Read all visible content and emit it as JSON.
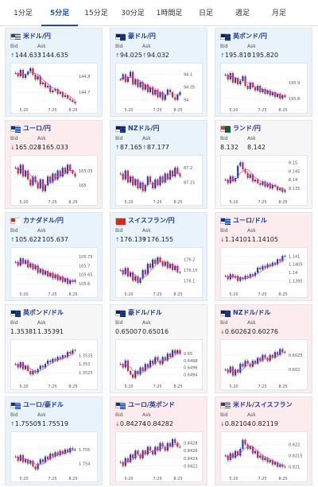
{
  "tabs": [
    {
      "label": "1分足",
      "active": false
    },
    {
      "label": "5分足",
      "active": true
    },
    {
      "label": "15分足",
      "active": false
    },
    {
      "label": "30分足",
      "active": false
    },
    {
      "label": "1時間足",
      "active": false
    },
    {
      "label": "日足",
      "active": false
    },
    {
      "label": "週足",
      "active": false
    },
    {
      "label": "月足",
      "active": false
    }
  ],
  "colors": {
    "up": "#1c7fd6",
    "down": "#d2283a",
    "up_bg": "#e9f3fc",
    "down_bg": "#fcecee",
    "accent": "#1f4fa8",
    "ma": "#c946d6"
  },
  "x_ticks": [
    "5:20",
    "7:25",
    "8:25"
  ],
  "pairs": [
    {
      "name": "米ドル/円",
      "trend": "up",
      "flag": [
        "#ffffff",
        "#3c3b6e",
        "#b22234"
      ],
      "bid_label": "Bid",
      "ask_label": "Ask",
      "bid_arrow": "↑",
      "bid": "144.633",
      "ask_arrow": "↑",
      "ask": "144.635",
      "y_ticks": [
        "144.8",
        "144.7"
      ],
      "y_range": [
        144.62,
        144.86
      ],
      "closes": [
        144.82,
        144.8,
        144.84,
        144.79,
        144.81,
        144.83,
        144.85,
        144.81,
        144.78,
        144.8,
        144.75,
        144.76,
        144.73,
        144.74,
        144.7,
        144.71,
        144.72,
        144.69,
        144.7,
        144.67,
        144.68,
        144.66,
        144.65,
        144.64,
        144.63
      ]
    },
    {
      "name": "豪ドル/円",
      "trend": "up",
      "flag": [
        "#012169",
        "#012169",
        "#c8102e"
      ],
      "bid_label": "Bid",
      "ask_label": "Ask",
      "bid_arrow": "↑",
      "bid": "94.025",
      "ask_arrow": "↑",
      "ask": "94.032",
      "y_ticks": [
        "94.1",
        "94.05",
        "94"
      ],
      "y_range": [
        93.98,
        94.13
      ],
      "closes": [
        94.08,
        94.1,
        94.07,
        94.09,
        94.11,
        94.06,
        94.08,
        94.05,
        94.07,
        94.04,
        94.06,
        94.03,
        94.05,
        94.02,
        94.04,
        94.01,
        94.03,
        94.0,
        94.02,
        94.04,
        94.03,
        94.01,
        94.0,
        94.02,
        94.03
      ]
    },
    {
      "name": "英ポンド/円",
      "trend": "up",
      "flag": [
        "#012169",
        "#012169",
        "#c8102e"
      ],
      "bid_label": "Bid",
      "ask_label": "Ask",
      "bid_arrow": "↑",
      "bid": "195.810",
      "ask_arrow": "↑",
      "ask": "195.820",
      "y_ticks": [
        "195.9",
        "195.8"
      ],
      "y_range": [
        195.76,
        196.0
      ],
      "closes": [
        195.95,
        195.92,
        195.96,
        195.9,
        195.93,
        195.89,
        195.91,
        195.94,
        195.88,
        195.86,
        195.9,
        195.87,
        195.85,
        195.88,
        195.84,
        195.86,
        195.83,
        195.85,
        195.82,
        195.84,
        195.81,
        195.83,
        195.8,
        195.82,
        195.81
      ]
    },
    {
      "name": "ユーロ/円",
      "trend": "down",
      "flag": [
        "#003399",
        "#003399",
        "#ffcc00"
      ],
      "bid_label": "Bid",
      "ask_label": "Ask",
      "bid_arrow": "↓",
      "bid": "165.028",
      "ask_arrow": "↓",
      "ask": "165.033",
      "y_ticks": [
        "165.05",
        "165"
      ],
      "y_range": [
        164.96,
        165.09
      ],
      "closes": [
        165.06,
        165.04,
        165.07,
        165.03,
        165.05,
        165.02,
        165.0,
        165.03,
        165.01,
        164.99,
        165.02,
        164.98,
        165.0,
        165.03,
        165.01,
        165.04,
        165.02,
        165.05,
        165.03,
        165.06,
        165.04,
        165.07,
        165.05,
        165.04,
        165.03
      ]
    },
    {
      "name": "NZドル/円",
      "trend": "up",
      "flag": [
        "#012169",
        "#012169",
        "#c8102e"
      ],
      "bid_label": "Bid",
      "ask_label": "Ask",
      "bid_arrow": "↑",
      "bid": "87.165",
      "ask_arrow": "↑",
      "ask": "87.177",
      "y_ticks": [
        "87.2",
        "87.15"
      ],
      "y_range": [
        87.1,
        87.23
      ],
      "closes": [
        87.18,
        87.16,
        87.19,
        87.15,
        87.17,
        87.14,
        87.16,
        87.13,
        87.15,
        87.12,
        87.14,
        87.17,
        87.15,
        87.13,
        87.16,
        87.14,
        87.17,
        87.15,
        87.18,
        87.16,
        87.19,
        87.17,
        87.2,
        87.18,
        87.17
      ]
    },
    {
      "name": "ランド/円",
      "trend": "flat",
      "flag": [
        "#007a4d",
        "#de3831",
        "#002395"
      ],
      "bid_label": "Bid",
      "ask_label": "Ask",
      "bid_arrow": "",
      "bid": "8.132",
      "ask_arrow": "",
      "ask": "8.142",
      "y_ticks": [
        "8.15",
        "8.145",
        "8.14",
        "8.135"
      ],
      "y_range": [
        8.13,
        8.152
      ],
      "closes": [
        8.14,
        8.138,
        8.142,
        8.139,
        8.141,
        8.148,
        8.15,
        8.146,
        8.144,
        8.141,
        8.143,
        8.139,
        8.14,
        8.138,
        8.137,
        8.139,
        8.136,
        8.138,
        8.135,
        8.137,
        8.136,
        8.134,
        8.135,
        8.133,
        8.134
      ]
    },
    {
      "name": "カナダドル/円",
      "trend": "up",
      "flag": [
        "#ffffff",
        "#d52b1e",
        "#ffffff"
      ],
      "bid_label": "Bid",
      "ask_label": "Ask",
      "bid_arrow": "↑",
      "bid": "105.622",
      "ask_arrow": "↑",
      "ask": "105.637",
      "y_ticks": [
        "105.75",
        "105.7",
        "105.65",
        "105.6"
      ],
      "y_range": [
        105.57,
        105.78
      ],
      "closes": [
        105.72,
        105.7,
        105.74,
        105.71,
        105.73,
        105.69,
        105.71,
        105.68,
        105.7,
        105.66,
        105.68,
        105.65,
        105.67,
        105.64,
        105.66,
        105.63,
        105.65,
        105.62,
        105.64,
        105.61,
        105.63,
        105.6,
        105.62,
        105.61,
        105.62
      ]
    },
    {
      "name": "スイスフラン/円",
      "trend": "up",
      "flag": [
        "#d52b1e",
        "#d52b1e",
        "#d52b1e"
      ],
      "bid_label": "Bid",
      "ask_label": "Ask",
      "bid_arrow": "↑",
      "bid": "176.139",
      "ask_arrow": "↑",
      "ask": "176.155",
      "y_ticks": [
        "176.2",
        "176.15",
        "176.1"
      ],
      "y_range": [
        176.06,
        176.24
      ],
      "closes": [
        176.15,
        176.13,
        176.16,
        176.12,
        176.14,
        176.1,
        176.12,
        176.09,
        176.11,
        176.15,
        176.13,
        176.18,
        176.16,
        176.2,
        176.18,
        176.21,
        176.19,
        176.17,
        176.19,
        176.16,
        176.18,
        176.15,
        176.17,
        176.14,
        176.14
      ]
    },
    {
      "name": "ユーロ/ドル",
      "trend": "down",
      "flag": [
        "#003399",
        "#003399",
        "#ffcc00"
      ],
      "bid_label": "Bid",
      "ask_label": "Ask",
      "bid_arrow": "↓",
      "bid": "1.14101",
      "ask_arrow": "↓",
      "ask": "1.14105",
      "y_ticks": [
        "1.141",
        "1.1405",
        "1.14",
        "1.1395"
      ],
      "y_range": [
        1.139,
        1.1413
      ],
      "closes": [
        1.1398,
        1.1396,
        1.1399,
        1.1397,
        1.1398,
        1.1395,
        1.1397,
        1.1396,
        1.1398,
        1.1397,
        1.1399,
        1.1398,
        1.14,
        1.1403,
        1.1402,
        1.1404,
        1.1403,
        1.1405,
        1.1404,
        1.1406,
        1.1405,
        1.1408,
        1.1407,
        1.141,
        1.141
      ]
    },
    {
      "name": "英ポンド/ドル",
      "trend": "flat",
      "flag": [
        "#012169",
        "#012169",
        "#c8102e"
      ],
      "bid_label": "Bid",
      "ask_label": "Ask",
      "bid_arrow": "",
      "bid": "1.35381",
      "ask_arrow": "",
      "ask": "1.35391",
      "y_ticks": [
        "1.3535",
        "1.353",
        "1.3525"
      ],
      "y_range": [
        1.352,
        1.3542
      ],
      "closes": [
        1.353,
        1.3528,
        1.3531,
        1.3527,
        1.3529,
        1.3526,
        1.3524,
        1.3526,
        1.3525,
        1.3527,
        1.3529,
        1.3528,
        1.353,
        1.3532,
        1.3531,
        1.3533,
        1.3532,
        1.3534,
        1.3533,
        1.3535,
        1.3534,
        1.3537,
        1.3536,
        1.3538,
        1.3538
      ]
    },
    {
      "name": "豪ドル/ドル",
      "trend": "flat",
      "flag": [
        "#012169",
        "#012169",
        "#c8102e"
      ],
      "bid_label": "Bid",
      "ask_label": "Ask",
      "bid_arrow": "",
      "bid": "0.65007",
      "ask_arrow": "",
      "ask": "0.65016",
      "y_ticks": [
        "0.65",
        "0.6498",
        "0.6496",
        "0.6494"
      ],
      "y_range": [
        0.6492,
        0.6503
      ],
      "closes": [
        0.6497,
        0.6496,
        0.6498,
        0.6495,
        0.6494,
        0.6493,
        0.6495,
        0.6494,
        0.6496,
        0.6495,
        0.6497,
        0.6496,
        0.6498,
        0.6497,
        0.6499,
        0.6498,
        0.6497,
        0.6499,
        0.6498,
        0.65,
        0.6499,
        0.6501,
        0.65,
        0.6501,
        0.65
      ]
    },
    {
      "name": "NZドル/ドル",
      "trend": "down",
      "flag": [
        "#012169",
        "#012169",
        "#c8102e"
      ],
      "bid_label": "Bid",
      "ask_label": "Ask",
      "bid_arrow": "↓",
      "bid": "0.60262",
      "ask_arrow": "↓",
      "ask": "0.60276",
      "y_ticks": [
        "0.6025",
        "0.602"
      ],
      "y_range": [
        0.6016,
        0.6029
      ],
      "closes": [
        0.602,
        0.6019,
        0.6021,
        0.6018,
        0.602,
        0.6019,
        0.6022,
        0.6021,
        0.6023,
        0.6022,
        0.6021,
        0.6023,
        0.6022,
        0.6024,
        0.6023,
        0.6025,
        0.6024,
        0.6023,
        0.6025,
        0.6024,
        0.6026,
        0.6025,
        0.6027,
        0.6026,
        0.6026
      ]
    },
    {
      "name": "ユーロ/豪ドル",
      "trend": "up",
      "flag": [
        "#003399",
        "#003399",
        "#ffcc00"
      ],
      "bid_label": "Bid",
      "ask_label": "Ask",
      "bid_arrow": "↑",
      "bid": "1.75505",
      "ask_arrow": "↑",
      "ask": "1.75519",
      "y_ticks": [
        "1.755",
        "1.754"
      ],
      "y_range": [
        1.7533,
        1.756
      ],
      "closes": [
        1.7545,
        1.7542,
        1.7546,
        1.7541,
        1.7543,
        1.754,
        1.7542,
        1.7538,
        1.7536,
        1.754,
        1.7543,
        1.7541,
        1.7545,
        1.7543,
        1.7547,
        1.7545,
        1.7548,
        1.7546,
        1.7549,
        1.7547,
        1.755,
        1.7548,
        1.7551,
        1.755,
        1.755
      ]
    },
    {
      "name": "ユーロ/英ポンド",
      "trend": "down",
      "flag": [
        "#003399",
        "#003399",
        "#ffcc00"
      ],
      "bid_label": "Bid",
      "ask_label": "Ask",
      "bid_arrow": "↓",
      "bid": "0.84274",
      "ask_arrow": "↓",
      "ask": "0.84282",
      "y_ticks": [
        "0.8428",
        "0.8426",
        "0.8424",
        "0.8422"
      ],
      "y_range": [
        0.842,
        0.843
      ],
      "closes": [
        0.8423,
        0.8422,
        0.8424,
        0.8423,
        0.8425,
        0.8424,
        0.8426,
        0.8425,
        0.8424,
        0.8426,
        0.8425,
        0.8427,
        0.8426,
        0.8425,
        0.8427,
        0.8426,
        0.8428,
        0.8427,
        0.8426,
        0.8428,
        0.8427,
        0.8429,
        0.8428,
        0.8427,
        0.8427
      ]
    },
    {
      "name": "米ドル/スイスフラン",
      "trend": "down",
      "flag": [
        "#ffffff",
        "#3c3b6e",
        "#b22234"
      ],
      "bid_label": "Bid",
      "ask_label": "Ask",
      "bid_arrow": "↓",
      "bid": "0.82104",
      "ask_arrow": "↓",
      "ask": "0.82119",
      "y_ticks": [
        "0.822",
        "0.8215",
        "0.821"
      ],
      "y_range": [
        0.8207,
        0.8224
      ],
      "closes": [
        0.8215,
        0.8213,
        0.8216,
        0.8214,
        0.8217,
        0.8215,
        0.8218,
        0.8222,
        0.822,
        0.8218,
        0.8219,
        0.8216,
        0.8217,
        0.8214,
        0.8215,
        0.8213,
        0.8214,
        0.8212,
        0.8213,
        0.8211,
        0.8212,
        0.821,
        0.8211,
        0.821,
        0.821
      ]
    }
  ]
}
